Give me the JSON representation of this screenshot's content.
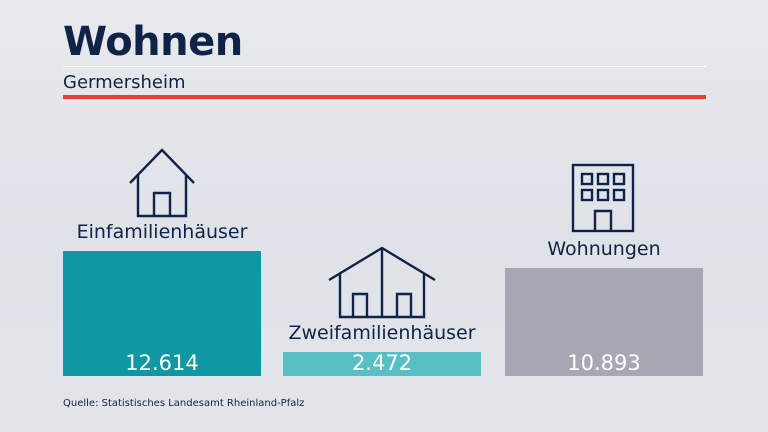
{
  "header": {
    "title": "Wohnen",
    "subtitle": "Germersheim"
  },
  "chart_data": {
    "type": "bar",
    "categories": [
      "Einfamilienhäuser",
      "Zweifamilienhäuser",
      "Wohnungen"
    ],
    "values": [
      12614,
      2472,
      10893
    ],
    "value_labels": [
      "12.614",
      "2.472",
      "10.893"
    ],
    "colors": [
      "#0f98a3",
      "#58c0c5",
      "#a8a8b4"
    ],
    "icons": [
      "house-icon",
      "double-house-icon",
      "apartment-building-icon"
    ],
    "title": "Wohnen",
    "subtitle": "Germersheim",
    "ylim": [
      0,
      12614
    ],
    "grid": false,
    "legend": "none"
  },
  "footer": {
    "source": "Quelle: Statistisches Landesamt Rheinland-Pfalz"
  }
}
